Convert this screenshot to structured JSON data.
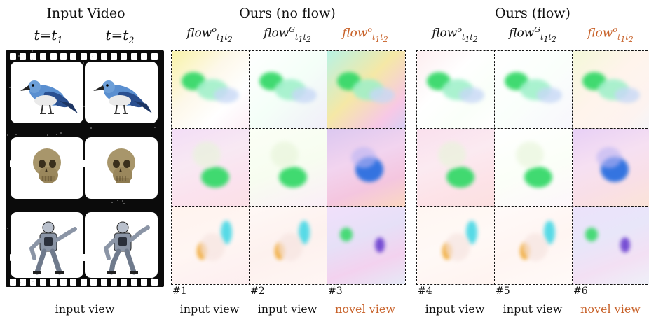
{
  "titles": {
    "input_video": "Input Video",
    "ours_no_flow": "Ours (no flow)",
    "ours_flow": "Ours (flow)"
  },
  "time_labels": [
    {
      "base": "t=t",
      "sub": "1"
    },
    {
      "base": "t=t",
      "sub": "2"
    }
  ],
  "column_headers": [
    {
      "base": "flow",
      "sup": "o",
      "sub1": "t",
      "s1": "1",
      "sub2": "t",
      "s2": "2",
      "highlight": false
    },
    {
      "base": "flow",
      "sup": "G",
      "sub1": "t",
      "s1": "1",
      "sub2": "t",
      "s2": "2",
      "highlight": false
    },
    {
      "base": "flow",
      "sup": "o",
      "sub1": "t",
      "s1": "1",
      "sub2": "t",
      "s2": "2",
      "highlight": true
    },
    {
      "base": "flow",
      "sup": "o",
      "sub1": "t",
      "s1": "1",
      "sub2": "t",
      "s2": "2",
      "highlight": false
    },
    {
      "base": "flow",
      "sup": "G",
      "sub1": "t",
      "s1": "1",
      "sub2": "t",
      "s2": "2",
      "highlight": false
    },
    {
      "base": "flow",
      "sup": "o",
      "sub1": "t",
      "s1": "1",
      "sub2": "t",
      "s2": "2",
      "highlight": true
    }
  ],
  "panel_numbers": [
    "#1",
    "#2",
    "#3",
    "#4",
    "#5",
    "#6"
  ],
  "footers": {
    "film": "input view",
    "col1": "input view",
    "col2": "input view",
    "col3": "novel view",
    "col4": "input view",
    "col5": "input view",
    "col6": "novel view"
  },
  "rows": [
    "bird",
    "skull",
    "robot"
  ],
  "colors": {
    "highlight": "#c8622a",
    "film": "#0b0b0b",
    "green": "#37d96a",
    "cyan": "#4fd9e6",
    "blue": "#2a6fe0",
    "orange": "#f0a830",
    "purple": "#6a3fd0"
  }
}
